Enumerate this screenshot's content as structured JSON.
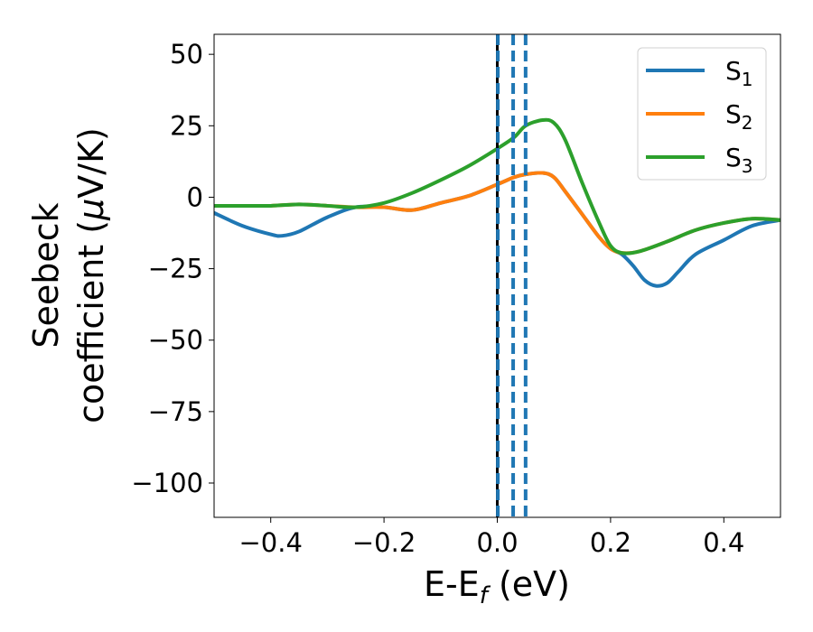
{
  "chart_data": {
    "type": "line",
    "xlabel": {
      "main": "E-E",
      "sub": "f",
      "unit": " (eV)"
    },
    "ylabel": {
      "line1": "Seebeck",
      "line2_pre": "coefficient  (",
      "mu": "μ",
      "line2_post": "V/K)"
    },
    "xlim": [
      -0.5,
      0.5
    ],
    "ylim": [
      -112,
      57
    ],
    "xticks": [
      {
        "value": -0.4,
        "label": "−0.4"
      },
      {
        "value": -0.2,
        "label": "−0.2"
      },
      {
        "value": 0.0,
        "label": "0.0"
      },
      {
        "value": 0.2,
        "label": "0.2"
      },
      {
        "value": 0.4,
        "label": "0.4"
      }
    ],
    "yticks": [
      {
        "value": 50,
        "label": "50"
      },
      {
        "value": 25,
        "label": "25"
      },
      {
        "value": 0,
        "label": "0"
      },
      {
        "value": -25,
        "label": "−25"
      },
      {
        "value": -50,
        "label": "−50"
      },
      {
        "value": -75,
        "label": "−75"
      },
      {
        "value": -100,
        "label": "−100"
      }
    ],
    "legend_position": "top-right",
    "grid": false,
    "vertical_lines": [
      {
        "x": 0.0,
        "color": "#000000",
        "style": "solid"
      },
      {
        "x": 0.001,
        "color": "#1f77b4",
        "style": "dashed"
      },
      {
        "x": 0.028,
        "color": "#1f77b4",
        "style": "dashed"
      },
      {
        "x": 0.05,
        "color": "#1f77b4",
        "style": "dashed"
      }
    ],
    "series": [
      {
        "name": "S",
        "sub": "1",
        "color": "#1f77b4",
        "x": [
          -0.5,
          -0.45,
          -0.4,
          -0.38,
          -0.35,
          -0.3,
          -0.25,
          -0.2,
          -0.15,
          -0.1,
          -0.05,
          0.0,
          0.03,
          0.05,
          0.08,
          0.1,
          0.12,
          0.15,
          0.18,
          0.2,
          0.22,
          0.24,
          0.26,
          0.28,
          0.3,
          0.32,
          0.35,
          0.4,
          0.45,
          0.5
        ],
        "y": [
          -5.5,
          -10,
          -13,
          -13.5,
          -12,
          -7,
          -3.5,
          -3.5,
          -4.5,
          -2,
          0.5,
          4.5,
          7,
          8,
          8.5,
          7,
          2,
          -6,
          -14,
          -18,
          -20,
          -24,
          -29,
          -31,
          -30,
          -26,
          -20,
          -15,
          -10,
          -8
        ]
      },
      {
        "name": "S",
        "sub": "2",
        "color": "#ff7f0e",
        "x": [
          -0.5,
          -0.45,
          -0.4,
          -0.35,
          -0.3,
          -0.25,
          -0.2,
          -0.15,
          -0.1,
          -0.05,
          0.0,
          0.03,
          0.05,
          0.08,
          0.1,
          0.12,
          0.15,
          0.18,
          0.2,
          0.22,
          0.25,
          0.3,
          0.35,
          0.4,
          0.45,
          0.5
        ],
        "y": [
          -3,
          -3,
          -3,
          -2.5,
          -3,
          -3.5,
          -3.5,
          -4.5,
          -2,
          0.5,
          4.5,
          7,
          8,
          8.5,
          7,
          2,
          -6,
          -14,
          -18,
          -19.5,
          -19,
          -15.5,
          -11.5,
          -9,
          -7.5,
          -8
        ]
      },
      {
        "name": "S",
        "sub": "3",
        "color": "#2ca02c",
        "x": [
          -0.5,
          -0.45,
          -0.4,
          -0.35,
          -0.3,
          -0.25,
          -0.2,
          -0.15,
          -0.1,
          -0.05,
          0.0,
          0.03,
          0.05,
          0.08,
          0.1,
          0.12,
          0.15,
          0.18,
          0.2,
          0.22,
          0.25,
          0.3,
          0.35,
          0.4,
          0.45,
          0.5
        ],
        "y": [
          -3,
          -3,
          -3,
          -2.5,
          -3,
          -3.5,
          -2,
          1.5,
          6,
          11,
          17,
          21,
          25,
          27,
          26,
          20,
          5,
          -9,
          -17,
          -19.5,
          -19,
          -15.5,
          -11.5,
          -9,
          -7.5,
          -8
        ]
      }
    ]
  }
}
